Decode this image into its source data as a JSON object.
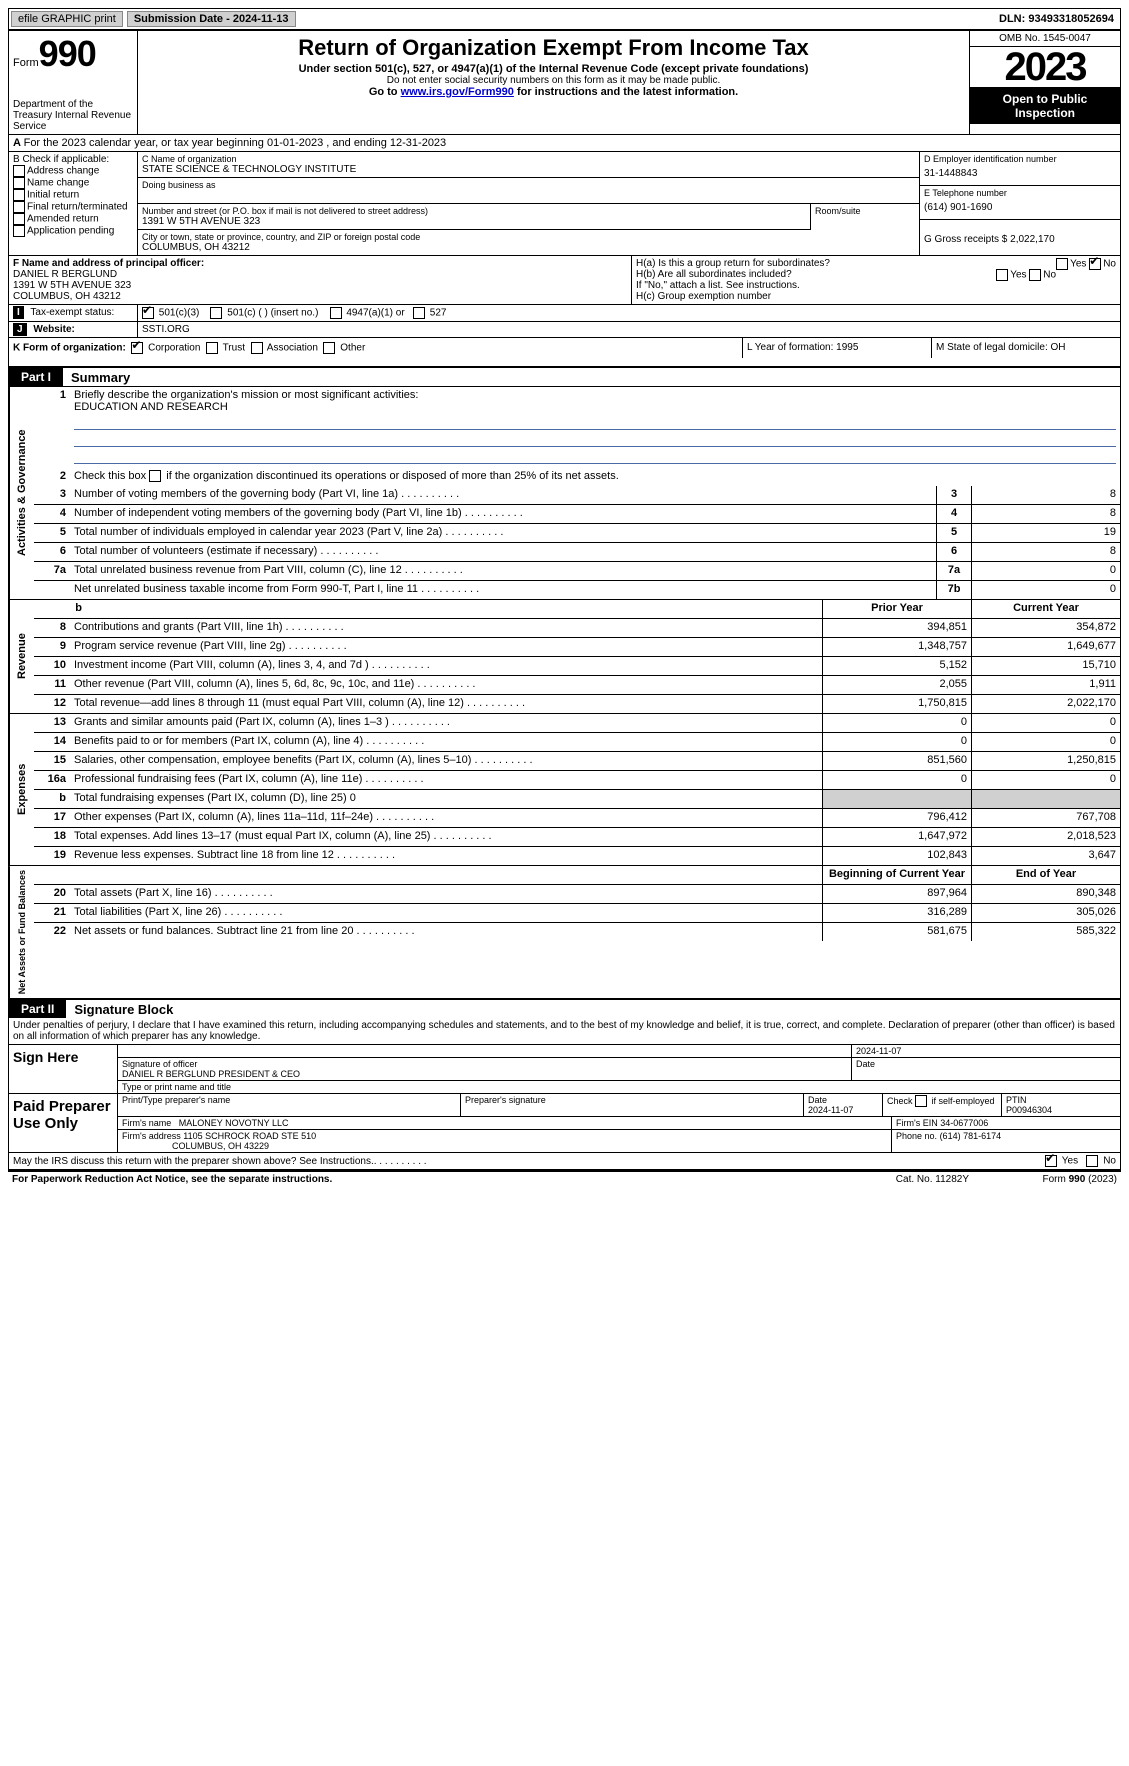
{
  "topbar": {
    "efile": "efile GRAPHIC print",
    "submission_label": "Submission Date - 2024-11-13",
    "dln": "DLN: 93493318052694"
  },
  "header": {
    "form_word": "Form",
    "form_num": "990",
    "dept": "Department of the Treasury Internal Revenue Service",
    "title": "Return of Organization Exempt From Income Tax",
    "sub1": "Under section 501(c), 527, or 4947(a)(1) of the Internal Revenue Code (except private foundations)",
    "sub2": "Do not enter social security numbers on this form as it may be made public.",
    "sub3_pre": "Go to ",
    "sub3_link": "www.irs.gov/Form990",
    "sub3_post": " for instructions and the latest information.",
    "omb": "OMB No. 1545-0047",
    "year": "2023",
    "open": "Open to Public Inspection"
  },
  "line_a": "For the 2023 calendar year, or tax year beginning 01-01-2023    , and ending 12-31-2023",
  "col_b": {
    "hdr": "B Check if applicable:",
    "opts": [
      "Address change",
      "Name change",
      "Initial return",
      "Final return/terminated",
      "Amended return",
      "Application pending"
    ]
  },
  "block_c": {
    "name_label": "C Name of organization",
    "name": "STATE SCIENCE & TECHNOLOGY INSTITUTE",
    "dba_label": "Doing business as",
    "street_label": "Number and street (or P.O. box if mail is not delivered to street address)",
    "room_label": "Room/suite",
    "street": "1391 W 5TH AVENUE 323",
    "city_label": "City or town, state or province, country, and ZIP or foreign postal code",
    "city": "COLUMBUS, OH  43212"
  },
  "block_d": {
    "ein_label": "D Employer identification number",
    "ein": "31-1448843",
    "tel_label": "E Telephone number",
    "tel": "(614) 901-1690",
    "gross_label": "G Gross receipts $",
    "gross": "2,022,170"
  },
  "block_f": {
    "label": "F  Name and address of principal officer:",
    "name": "DANIEL R BERGLUND",
    "street": "1391 W 5TH AVENUE 323",
    "city": "COLUMBUS, OH  43212"
  },
  "block_h": {
    "ha": "H(a)  Is this a group return for subordinates?",
    "hb": "H(b)  Are all subordinates included?",
    "hb_note": "If \"No,\" attach a list. See instructions.",
    "hc": "H(c)  Group exemption number",
    "yes": "Yes",
    "no": "No"
  },
  "row_i": {
    "label": "I",
    "text": "Tax-exempt status:",
    "opts": [
      "501(c)(3)",
      "501(c) (  ) (insert no.)",
      "4947(a)(1) or",
      "527"
    ]
  },
  "row_j": {
    "label": "J",
    "text": "Website:",
    "val": "SSTI.ORG"
  },
  "row_k": {
    "label": "K Form of organization:",
    "opts": [
      "Corporation",
      "Trust",
      "Association",
      "Other"
    ],
    "l": "L Year of formation: 1995",
    "m": "M State of legal domicile: OH"
  },
  "part1": {
    "tag": "Part I",
    "title": "Summary"
  },
  "gov": {
    "tab": "Activities & Governance",
    "l1_desc": "Briefly describe the organization's mission or most significant activities:",
    "l1_val": "EDUCATION AND RESEARCH",
    "l2": "Check this box    if the organization discontinued its operations or disposed of more than 25% of its net assets.",
    "rows": [
      {
        "n": "3",
        "d": "Number of voting members of the governing body (Part VI, line 1a)",
        "b": "3",
        "v": "8"
      },
      {
        "n": "4",
        "d": "Number of independent voting members of the governing body (Part VI, line 1b)",
        "b": "4",
        "v": "8"
      },
      {
        "n": "5",
        "d": "Total number of individuals employed in calendar year 2023 (Part V, line 2a)",
        "b": "5",
        "v": "19"
      },
      {
        "n": "6",
        "d": "Total number of volunteers (estimate if necessary)",
        "b": "6",
        "v": "8"
      },
      {
        "n": "7a",
        "d": "Total unrelated business revenue from Part VIII, column (C), line 12",
        "b": "7a",
        "v": "0"
      },
      {
        "n": "",
        "d": "Net unrelated business taxable income from Form 990-T, Part I, line 11",
        "b": "7b",
        "v": "0"
      }
    ]
  },
  "rev": {
    "tab": "Revenue",
    "hdr_prior": "Prior Year",
    "hdr_curr": "Current Year",
    "rows": [
      {
        "n": "8",
        "d": "Contributions and grants (Part VIII, line 1h)",
        "p": "394,851",
        "c": "354,872"
      },
      {
        "n": "9",
        "d": "Program service revenue (Part VIII, line 2g)",
        "p": "1,348,757",
        "c": "1,649,677"
      },
      {
        "n": "10",
        "d": "Investment income (Part VIII, column (A), lines 3, 4, and 7d )",
        "p": "5,152",
        "c": "15,710"
      },
      {
        "n": "11",
        "d": "Other revenue (Part VIII, column (A), lines 5, 6d, 8c, 9c, 10c, and 11e)",
        "p": "2,055",
        "c": "1,911"
      },
      {
        "n": "12",
        "d": "Total revenue—add lines 8 through 11 (must equal Part VIII, column (A), line 12)",
        "p": "1,750,815",
        "c": "2,022,170"
      }
    ]
  },
  "exp": {
    "tab": "Expenses",
    "rows": [
      {
        "n": "13",
        "d": "Grants and similar amounts paid (Part IX, column (A), lines 1–3 )",
        "p": "0",
        "c": "0"
      },
      {
        "n": "14",
        "d": "Benefits paid to or for members (Part IX, column (A), line 4)",
        "p": "0",
        "c": "0"
      },
      {
        "n": "15",
        "d": "Salaries, other compensation, employee benefits (Part IX, column (A), lines 5–10)",
        "p": "851,560",
        "c": "1,250,815"
      },
      {
        "n": "16a",
        "d": "Professional fundraising fees (Part IX, column (A), line 11e)",
        "p": "0",
        "c": "0"
      },
      {
        "n": "b",
        "d": "Total fundraising expenses (Part IX, column (D), line 25) 0",
        "p": "",
        "c": "",
        "gray": true
      },
      {
        "n": "17",
        "d": "Other expenses (Part IX, column (A), lines 11a–11d, 11f–24e)",
        "p": "796,412",
        "c": "767,708"
      },
      {
        "n": "18",
        "d": "Total expenses. Add lines 13–17 (must equal Part IX, column (A), line 25)",
        "p": "1,647,972",
        "c": "2,018,523"
      },
      {
        "n": "19",
        "d": "Revenue less expenses. Subtract line 18 from line 12",
        "p": "102,843",
        "c": "3,647"
      }
    ]
  },
  "net": {
    "tab": "Net Assets or Fund Balances",
    "hdr_beg": "Beginning of Current Year",
    "hdr_end": "End of Year",
    "rows": [
      {
        "n": "20",
        "d": "Total assets (Part X, line 16)",
        "p": "897,964",
        "c": "890,348"
      },
      {
        "n": "21",
        "d": "Total liabilities (Part X, line 26)",
        "p": "316,289",
        "c": "305,026"
      },
      {
        "n": "22",
        "d": "Net assets or fund balances. Subtract line 21 from line 20",
        "p": "581,675",
        "c": "585,322"
      }
    ]
  },
  "part2": {
    "tag": "Part II",
    "title": "Signature Block"
  },
  "sig": {
    "penalties": "Under penalties of perjury, I declare that I have examined this return, including accompanying schedules and statements, and to the best of my knowledge and belief, it is true, correct, and complete. Declaration of preparer (other than officer) is based on all information of which preparer has any knowledge.",
    "sign_here": "Sign Here",
    "sig_officer": "Signature of officer",
    "officer_name": "DANIEL R BERGLUND  PRESIDENT & CEO",
    "type_name": "Type or print name and title",
    "date_label": "Date",
    "date1": "2024-11-07",
    "paid": "Paid Preparer Use Only",
    "prep_name_label": "Print/Type preparer's name",
    "prep_sig_label": "Preparer's signature",
    "date2_label": "Date",
    "date2": "2024-11-07",
    "check_self": "Check       if self-employed",
    "ptin_label": "PTIN",
    "ptin": "P00946304",
    "firm_name_label": "Firm's name",
    "firm_name": "MALONEY NOVOTNY LLC",
    "firm_ein_label": "Firm's EIN",
    "firm_ein": "34-0677006",
    "firm_addr_label": "Firm's address",
    "firm_addr1": "1105 SCHROCK ROAD STE 510",
    "firm_addr2": "COLUMBUS, OH  43229",
    "phone_label": "Phone no.",
    "phone": "(614) 781-6174"
  },
  "footer": {
    "discuss": "May the IRS discuss this return with the preparer shown above? See Instructions.",
    "yes": "Yes",
    "no": "No",
    "paperwork": "For Paperwork Reduction Act Notice, see the separate instructions.",
    "cat": "Cat. No. 11282Y",
    "form": "Form 990 (2023)"
  }
}
